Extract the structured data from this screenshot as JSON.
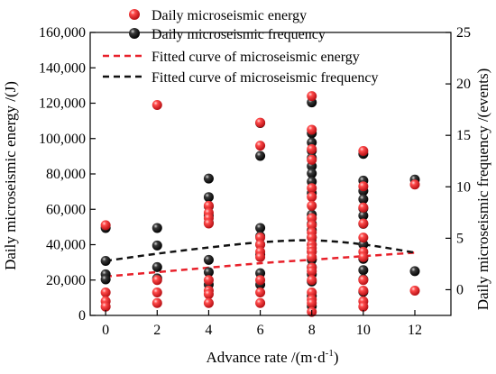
{
  "chart_data": {
    "type": "scatter",
    "xlabel": "Advance rate /(m·d",
    "xlabel_sup": "-1",
    "xlabel_tail": ")",
    "ylabel_left": "Daily microseismic energy /(J)",
    "ylabel_right": "Daily microseismic frequency /(events)",
    "x_ticks": [
      "0",
      "2",
      "4",
      "6",
      "8",
      "10",
      "12"
    ],
    "y_left_ticks": [
      "0",
      "20,000",
      "40,000",
      "60,000",
      "80,000",
      "100,000",
      "120,000",
      "140,000",
      "160,000"
    ],
    "y_right_ticks": [
      "0",
      "5",
      "10",
      "15",
      "20",
      "25"
    ],
    "xlim": [
      -0.6,
      13.4
    ],
    "ylim_left": [
      0,
      160000
    ],
    "ylim_right": [
      -2.5,
      25
    ],
    "legend_position": "top",
    "series": [
      {
        "name": "Daily microseismic energy",
        "axis": "left",
        "marker": "red-ball",
        "color": "#e8202a",
        "points": [
          [
            0,
            51000
          ],
          [
            0,
            13000
          ],
          [
            0,
            8000
          ],
          [
            0,
            5000
          ],
          [
            2,
            119000
          ],
          [
            2,
            20000
          ],
          [
            2,
            13000
          ],
          [
            2,
            7000
          ],
          [
            4,
            62000
          ],
          [
            4,
            58000
          ],
          [
            4,
            55000
          ],
          [
            4,
            52000
          ],
          [
            4,
            20000
          ],
          [
            4,
            14000
          ],
          [
            4,
            12000
          ],
          [
            4,
            7000
          ],
          [
            6,
            109000
          ],
          [
            6,
            96000
          ],
          [
            6,
            44000
          ],
          [
            6,
            40000
          ],
          [
            6,
            36000
          ],
          [
            6,
            33000
          ],
          [
            6,
            20000
          ],
          [
            6,
            13000
          ],
          [
            6,
            7000
          ],
          [
            8,
            124000
          ],
          [
            8,
            105000
          ],
          [
            8,
            94000
          ],
          [
            8,
            88000
          ],
          [
            8,
            72000
          ],
          [
            8,
            67000
          ],
          [
            8,
            62000
          ],
          [
            8,
            55000
          ],
          [
            8,
            51000
          ],
          [
            8,
            47000
          ],
          [
            8,
            44000
          ],
          [
            8,
            40000
          ],
          [
            8,
            38000
          ],
          [
            8,
            36000
          ],
          [
            8,
            33000
          ],
          [
            8,
            27000
          ],
          [
            8,
            25000
          ],
          [
            8,
            20000
          ],
          [
            8,
            13000
          ],
          [
            8,
            9000
          ],
          [
            8,
            7000
          ],
          [
            8,
            2000
          ],
          [
            10,
            93000
          ],
          [
            10,
            73000
          ],
          [
            10,
            61000
          ],
          [
            10,
            52000
          ],
          [
            10,
            44000
          ],
          [
            10,
            36000
          ],
          [
            10,
            33000
          ],
          [
            10,
            20000
          ],
          [
            10,
            14000
          ],
          [
            10,
            8000
          ],
          [
            10,
            5000
          ],
          [
            12,
            74000
          ],
          [
            12,
            14000
          ]
        ]
      },
      {
        "name": "Daily microseismic frequency",
        "axis": "right",
        "marker": "black-ball",
        "color": "#111111",
        "points": [
          [
            0,
            6
          ],
          [
            0,
            2.8
          ],
          [
            0,
            1.5
          ],
          [
            0,
            1
          ],
          [
            2,
            6
          ],
          [
            2,
            4.3
          ],
          [
            2,
            2.2
          ],
          [
            2,
            1.1
          ],
          [
            4,
            10.8
          ],
          [
            4,
            9
          ],
          [
            4,
            8.1
          ],
          [
            4,
            7.2
          ],
          [
            4,
            6.5
          ],
          [
            4,
            2.9
          ],
          [
            4,
            1.7
          ],
          [
            4,
            0.5
          ],
          [
            6,
            16.2
          ],
          [
            6,
            13
          ],
          [
            6,
            6
          ],
          [
            6,
            5.2
          ],
          [
            6,
            4.4
          ],
          [
            6,
            3.4
          ],
          [
            6,
            1.6
          ],
          [
            6,
            0.5
          ],
          [
            8,
            18.2
          ],
          [
            8,
            15.2
          ],
          [
            8,
            14.3
          ],
          [
            8,
            13.5
          ],
          [
            8,
            12.8
          ],
          [
            8,
            12
          ],
          [
            8,
            11.3
          ],
          [
            8,
            10.5
          ],
          [
            8,
            9.4
          ],
          [
            8,
            7.3
          ],
          [
            8,
            6.4
          ],
          [
            8,
            5.8
          ],
          [
            8,
            5.1
          ],
          [
            8,
            4.4
          ],
          [
            8,
            3.7
          ],
          [
            8,
            2.9
          ],
          [
            8,
            2.2
          ],
          [
            8,
            1.5
          ],
          [
            8,
            0.8
          ],
          [
            8,
            -0.6
          ],
          [
            8,
            -1.6
          ],
          [
            10,
            13.2
          ],
          [
            10,
            10.6
          ],
          [
            10,
            9.6
          ],
          [
            10,
            8.8
          ],
          [
            10,
            7.9
          ],
          [
            10,
            7.2
          ],
          [
            10,
            6.4
          ],
          [
            10,
            4.4
          ],
          [
            10,
            3
          ],
          [
            10,
            1.9
          ],
          [
            10,
            1
          ],
          [
            10,
            -0.2
          ],
          [
            12,
            10.7
          ],
          [
            12,
            1.8
          ]
        ]
      }
    ],
    "fitted_curves": [
      {
        "name": "Fitted curve of microseismic energy",
        "axis": "left",
        "color": "#e8202a",
        "dash": "dashed",
        "points": [
          [
            0,
            22000
          ],
          [
            2,
            24500
          ],
          [
            4,
            27000
          ],
          [
            6,
            29500
          ],
          [
            8,
            31500
          ],
          [
            10,
            33500
          ],
          [
            12,
            35500
          ]
        ]
      },
      {
        "name": "Fitted curve of microseismic frequency",
        "axis": "right",
        "color": "#111111",
        "dash": "dashed",
        "points": [
          [
            0,
            2.8
          ],
          [
            2,
            3.5
          ],
          [
            4,
            4.1
          ],
          [
            6,
            4.6
          ],
          [
            8,
            4.8
          ],
          [
            10,
            4.4
          ],
          [
            12,
            3.6
          ]
        ]
      }
    ]
  }
}
